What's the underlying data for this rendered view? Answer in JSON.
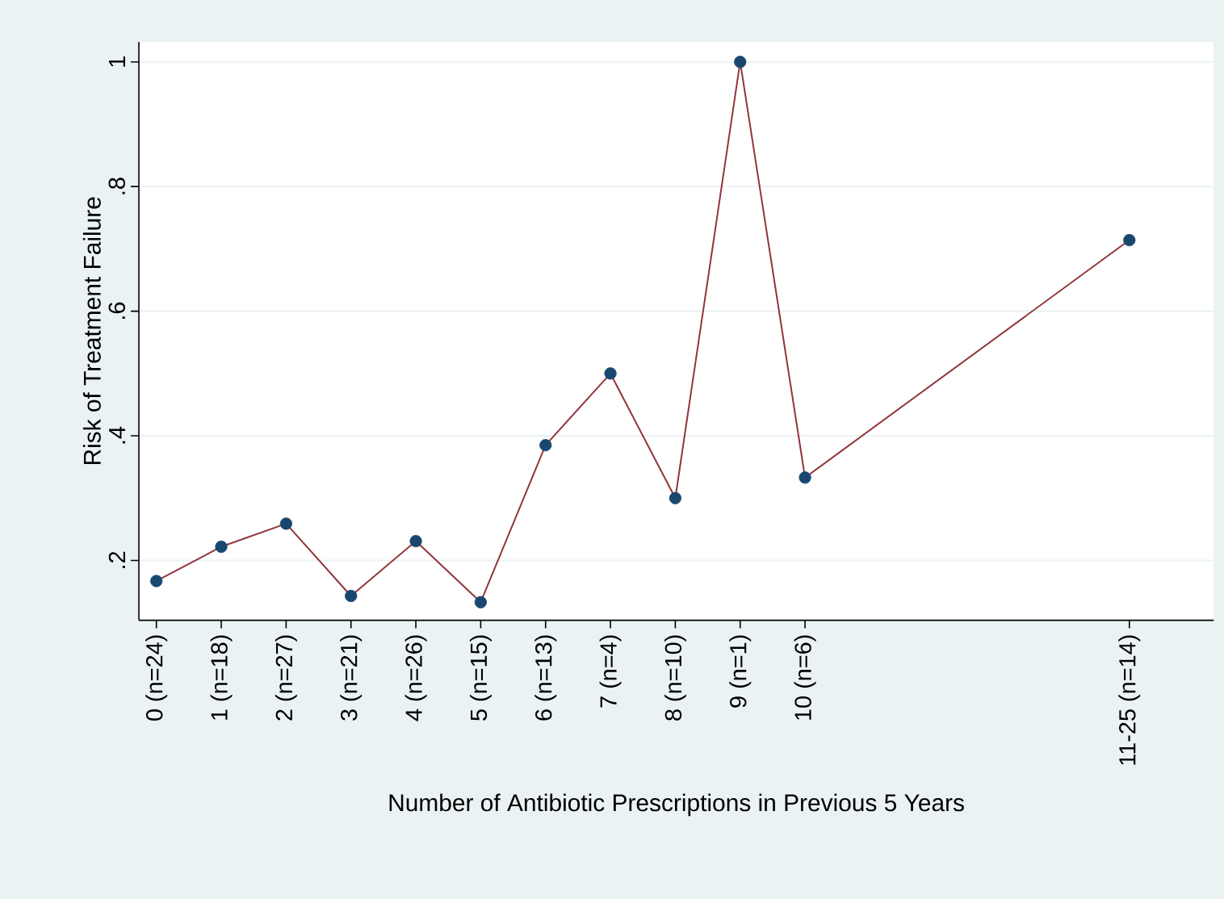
{
  "chart_data": {
    "type": "line",
    "xlabel": "Number of Antibiotic Prescriptions in Previous 5 Years",
    "ylabel": "Risk of Treatment Failure",
    "categories": [
      "0 (n=24)",
      "1 (n=18)",
      "2 (n=27)",
      "3 (n=21)",
      "4 (n=26)",
      "5 (n=15)",
      "6 (n=13)",
      "7 (n=4)",
      "8 (n=10)",
      "9 (n=1)",
      "10 (n=6)",
      null,
      null,
      null,
      null,
      "11-25 (n=14)"
    ],
    "series": [
      {
        "color": "#90353b",
        "colors": [
          "#1a476f",
          "#1a476f",
          "#1a476f",
          "#1a476f",
          "#1a476f",
          "#1a476f",
          "#1a476f",
          "#1a476f",
          "#1a476f",
          "#1a476f",
          "#1a476f",
          null,
          null,
          null,
          null,
          "#1a476f"
        ],
        "values": [
          0.167,
          0.222,
          0.259,
          0.143,
          0.231,
          0.133,
          0.385,
          0.5,
          0.3,
          1.0,
          0.333,
          null,
          null,
          null,
          null,
          0.714
        ]
      }
    ],
    "ylim": [
      0.104,
      1.032
    ],
    "yticks": [
      {
        "value": 0.2,
        "label": ".2"
      },
      {
        "value": 0.4,
        "label": ".4"
      },
      {
        "value": 0.6,
        "label": ".6"
      },
      {
        "value": 0.8,
        "label": ".8"
      },
      1
    ],
    "grid": "y",
    "marker": "circle",
    "line_style": "solid"
  }
}
